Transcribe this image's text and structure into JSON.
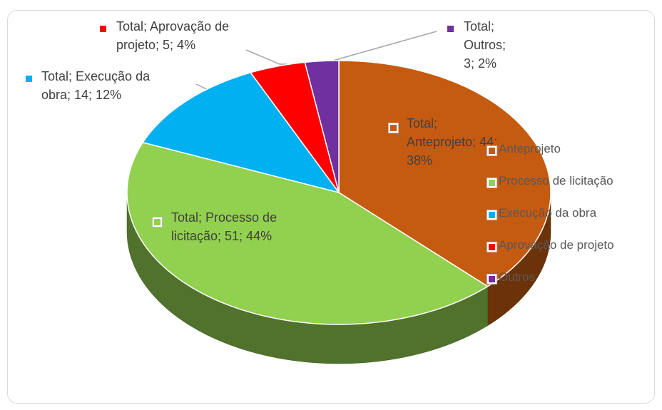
{
  "chart_data": {
    "type": "pie",
    "series_name": "Total",
    "categories": [
      "Anteprojeto",
      "Processo de licitação",
      "Execução da obra",
      "Aprovação de projeto",
      "Outros"
    ],
    "values": [
      44,
      51,
      14,
      5,
      3
    ],
    "data_labels": [
      "Total; Anteprojeto; 44; 38%",
      "Total; Processo de licitação; 51; 44%",
      "Total; Execução da obra; 14; 12%",
      "Total; Aprovação de projeto; 5; 4%",
      "Total; Outros; 3; 2%"
    ],
    "colors": [
      "#c55a11",
      "#92d050",
      "#00b0f0",
      "#ff0000",
      "#7030a0"
    ],
    "legend": "right"
  }
}
